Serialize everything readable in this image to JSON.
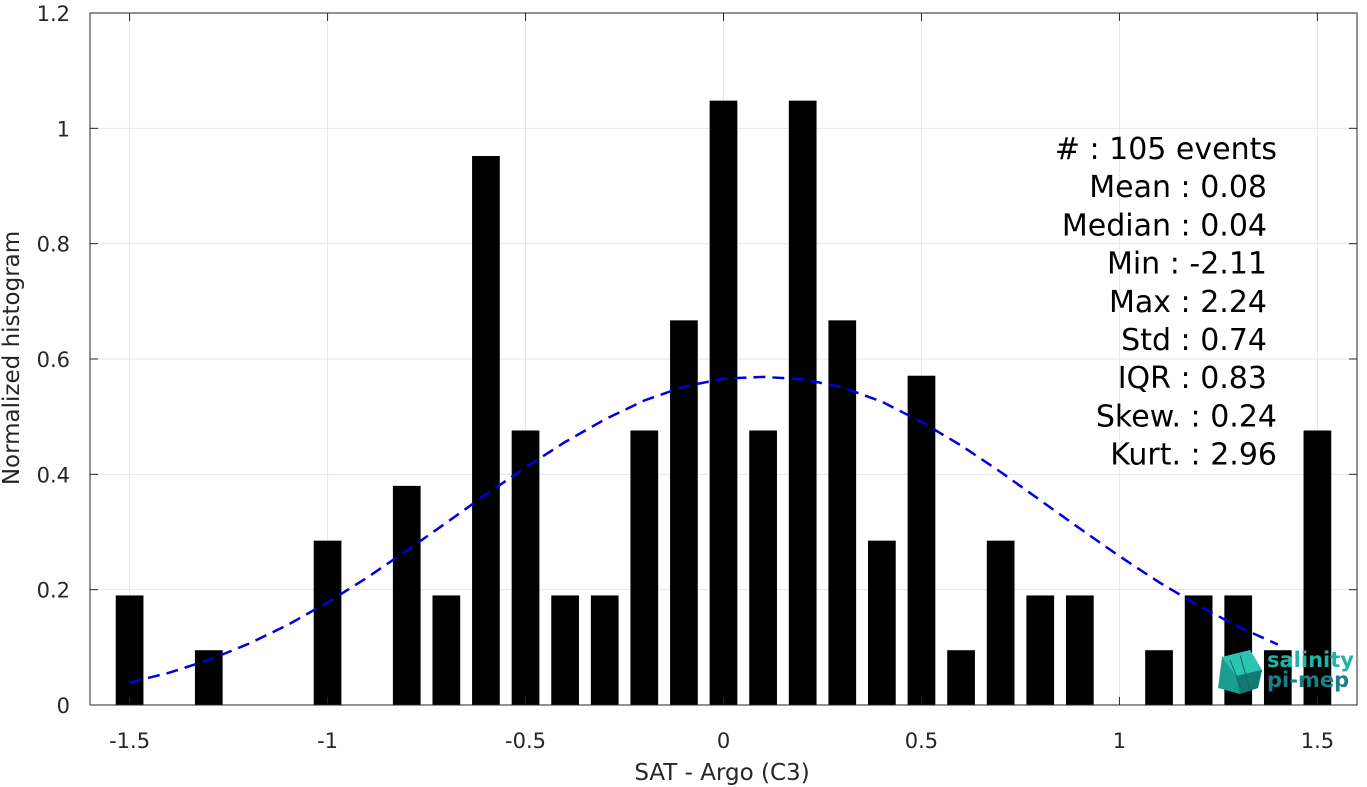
{
  "chart_data": {
    "type": "bar",
    "xlabel": "SAT - Argo (C3)",
    "ylabel": "Normalized histogram",
    "xlim": [
      -1.6,
      1.6
    ],
    "ylim": [
      0,
      1.2
    ],
    "xticks": [
      -1.5,
      -1,
      -0.5,
      0,
      0.5,
      1,
      1.5
    ],
    "xtick_labels": [
      "-1.5",
      "-1",
      "-0.5",
      "0",
      "0.5",
      "1",
      "1.5"
    ],
    "yticks": [
      0,
      0.2,
      0.4,
      0.6,
      0.8,
      1,
      1.2
    ],
    "ytick_labels": [
      "0",
      "0.2",
      "0.4",
      "0.6",
      "0.8",
      "1",
      "1.2"
    ],
    "grid": true,
    "bar_color": "#000000",
    "bar_width": 0.07,
    "x": [
      -1.5,
      -1.4,
      -1.3,
      -1.2,
      -1.1,
      -1.0,
      -0.9,
      -0.8,
      -0.7,
      -0.6,
      -0.5,
      -0.4,
      -0.3,
      -0.2,
      -0.1,
      0.0,
      0.1,
      0.2,
      0.3,
      0.4,
      0.5,
      0.6,
      0.7,
      0.8,
      0.9,
      1.0,
      1.1,
      1.2,
      1.3,
      1.4,
      1.5
    ],
    "values": [
      0.19,
      0,
      0.095,
      0,
      0,
      0.285,
      0,
      0.38,
      0.19,
      0.952,
      0.476,
      0.19,
      0.19,
      0.476,
      0.667,
      1.048,
      0.476,
      1.048,
      0.667,
      0.285,
      0.571,
      0.095,
      0.285,
      0.19,
      0.19,
      0,
      0.095,
      0.19,
      0.19,
      0.095,
      0.476
    ],
    "fit_curve": {
      "style": "dashed",
      "color": "#0000dd",
      "x": [
        -1.5,
        -1.4,
        -1.3,
        -1.2,
        -1.1,
        -1.0,
        -0.9,
        -0.8,
        -0.7,
        -0.6,
        -0.5,
        -0.4,
        -0.3,
        -0.2,
        -0.1,
        0.0,
        0.1,
        0.2,
        0.3,
        0.4,
        0.5,
        0.6,
        0.7,
        0.8,
        0.9,
        1.0,
        1.1,
        1.2,
        1.3,
        1.4
      ],
      "y": [
        0.039,
        0.056,
        0.078,
        0.106,
        0.139,
        0.178,
        0.221,
        0.268,
        0.316,
        0.365,
        0.412,
        0.456,
        0.495,
        0.528,
        0.552,
        0.566,
        0.569,
        0.565,
        0.551,
        0.526,
        0.491,
        0.45,
        0.404,
        0.355,
        0.306,
        0.258,
        0.213,
        0.172,
        0.136,
        0.105
      ]
    }
  },
  "stats": [
    {
      "label": "#  : 105 events",
      "x": 1277
    },
    {
      "label": "Mean : 0.08",
      "x": 1267
    },
    {
      "label": "Median : 0.04",
      "x": 1267
    },
    {
      "label": "Min : -2.11",
      "x": 1267
    },
    {
      "label": "Max : 2.24",
      "x": 1267
    },
    {
      "label": "Std : 0.74",
      "x": 1267
    },
    {
      "label": "IQR : 0.83",
      "x": 1267
    },
    {
      "label": "Skew. : 0.24",
      "x": 1277
    },
    {
      "label": "Kurt. : 2.96",
      "x": 1277
    }
  ],
  "logo": {
    "line1": "salinity",
    "line2": "pi-mep",
    "color1": "#1fb5a5",
    "color2": "#1a7f86"
  }
}
